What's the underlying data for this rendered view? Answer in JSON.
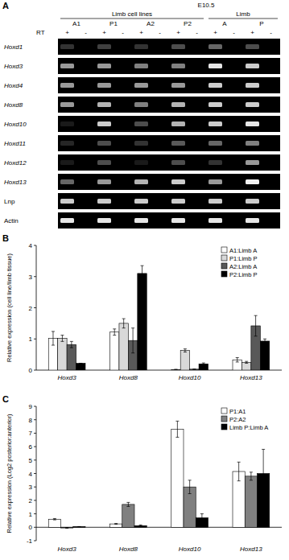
{
  "panel_a": {
    "label": "A",
    "stage": "E10.5",
    "groups": [
      "Limb cell lines",
      "Limb"
    ],
    "lanes": [
      "A1",
      "P1",
      "A2",
      "P2",
      "A",
      "P"
    ],
    "rt_label": "RT",
    "rt": [
      "+",
      "-",
      "+",
      "-",
      "+",
      "-",
      "+",
      "-",
      "+",
      "-",
      "+",
      "-"
    ],
    "genes": [
      "Hoxd1",
      "Hoxd3",
      "Hoxd4",
      "Hoxd8",
      "Hoxd10",
      "Hoxd11",
      "Hoxd12",
      "Hoxd13",
      "Lnp",
      "Actin"
    ],
    "bands": [
      [
        0.2,
        0,
        0.25,
        0,
        0.2,
        0,
        0.3,
        0,
        0.4,
        0,
        0.3,
        0
      ],
      [
        0.6,
        0,
        0.6,
        0,
        0.5,
        0,
        0.5,
        0,
        0.9,
        0,
        0.8,
        0
      ],
      [
        0.6,
        0,
        0.6,
        0,
        0.6,
        0,
        0.6,
        0,
        0.8,
        0,
        0.8,
        0
      ],
      [
        0.6,
        0,
        0.7,
        0,
        0.5,
        0,
        0.7,
        0,
        0.8,
        0,
        0.8,
        0
      ],
      [
        0.1,
        0,
        0.8,
        0,
        0.3,
        0,
        0.7,
        0,
        0.8,
        0,
        0.9,
        0
      ],
      [
        0.15,
        0,
        0.3,
        0,
        0.2,
        0,
        0.35,
        0,
        0.4,
        0,
        0.5,
        0
      ],
      [
        0.1,
        0,
        0.3,
        0,
        0.1,
        0,
        0.3,
        0,
        0.2,
        0,
        0.6,
        0
      ],
      [
        0.4,
        0,
        0.6,
        0,
        0.7,
        0,
        0.8,
        0,
        0.6,
        0,
        0.95,
        0
      ],
      [
        0.8,
        0,
        0.8,
        0,
        0.8,
        0,
        0.8,
        0,
        0.8,
        0,
        0.8,
        0
      ],
      [
        0.9,
        0,
        0.9,
        0,
        0.9,
        0,
        0.9,
        0,
        0.9,
        0,
        0.9,
        0
      ]
    ]
  },
  "chart_data": [
    {
      "type": "bar",
      "title": "B",
      "y_label": "Relative expression (cell line/limb tissue)",
      "categories": [
        "Hoxd3",
        "Hoxd8",
        "Hoxd10",
        "Hoxd13"
      ],
      "series": [
        {
          "name": "A1:Limb A",
          "color": "#ffffff",
          "values": [
            1.02,
            1.22,
            0.02,
            0.33
          ],
          "errors": [
            0.22,
            0.1,
            0,
            0.07
          ]
        },
        {
          "name": "P1:Limb P",
          "color": "#d9d9d9",
          "values": [
            1.02,
            1.5,
            0.63,
            0.25
          ],
          "errors": [
            0.1,
            0.15,
            0.05,
            0.03
          ]
        },
        {
          "name": "A2:Limb A",
          "color": "#595959",
          "values": [
            0.82,
            0.95,
            0.03,
            1.42
          ],
          "errors": [
            0.1,
            0.4,
            0,
            0.33
          ]
        },
        {
          "name": "P2:Limb P",
          "color": "#000000",
          "values": [
            0.22,
            3.1,
            0.2,
            0.93
          ],
          "errors": [
            0,
            0.25,
            0.03,
            0.07
          ]
        }
      ],
      "ylim": [
        0,
        4
      ],
      "yticks": [
        0,
        1,
        2,
        3,
        4
      ],
      "grid": false,
      "legend": "upper right"
    },
    {
      "type": "bar",
      "title": "C",
      "y_label": "Relative expression (Log2 posterior:anterior)",
      "categories": [
        "Hoxd3",
        "Hoxd8",
        "Hoxd10",
        "Hoxd13"
      ],
      "series": [
        {
          "name": "P1:A1",
          "color": "#ffffff",
          "values": [
            0.6,
            0.25,
            7.3,
            4.15
          ],
          "errors": [
            0.05,
            0.03,
            0.6,
            0.7
          ]
        },
        {
          "name": "P2:A2",
          "color": "#808080",
          "values": [
            -0.05,
            1.7,
            3.0,
            3.8
          ],
          "errors": [
            0.02,
            0.15,
            0.5,
            0.3
          ]
        },
        {
          "name": "Limb P:Limb A",
          "color": "#000000",
          "values": [
            0.05,
            0.12,
            0.7,
            4.0
          ],
          "errors": [
            0,
            0.05,
            0.3,
            1.8
          ]
        }
      ],
      "ylim": [
        -1,
        9
      ],
      "yticks": [
        -1,
        0,
        1,
        2,
        3,
        4,
        5,
        6,
        7,
        8,
        9
      ],
      "grid": false,
      "legend": "upper right"
    }
  ]
}
